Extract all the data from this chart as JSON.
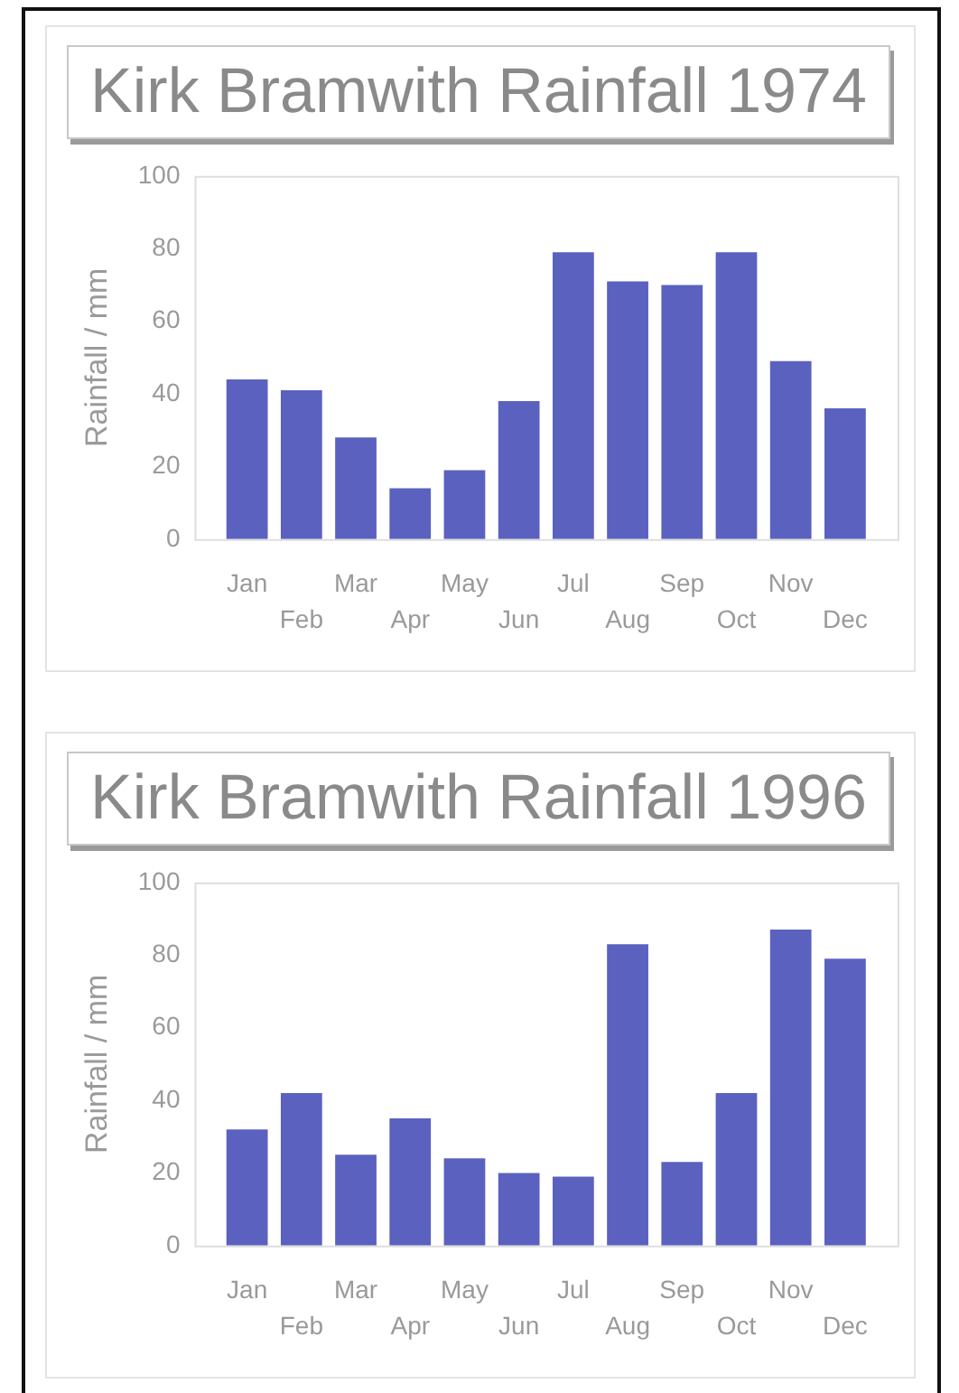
{
  "chart_data": [
    {
      "type": "bar",
      "title": "Kirk Bramwith Rainfall 1974",
      "ylabel": "Rainfall / mm",
      "categories": [
        "Jan",
        "Feb",
        "Mar",
        "Apr",
        "May",
        "Jun",
        "Jul",
        "Aug",
        "Sep",
        "Oct",
        "Nov",
        "Dec"
      ],
      "values": [
        44,
        41,
        28,
        14,
        19,
        38,
        79,
        71,
        70,
        79,
        49,
        36
      ],
      "color": "#5a61bf",
      "ylim": [
        0,
        100
      ],
      "yticks": [
        0,
        20,
        40,
        60,
        80,
        100
      ],
      "grid": false
    },
    {
      "type": "bar",
      "title": "Kirk Bramwith Rainfall 1996",
      "ylabel": "Rainfall / mm",
      "categories": [
        "Jan",
        "Feb",
        "Mar",
        "Apr",
        "May",
        "Jun",
        "Jul",
        "Aug",
        "Sep",
        "Oct",
        "Nov",
        "Dec"
      ],
      "values": [
        32,
        42,
        25,
        35,
        24,
        20,
        19,
        83,
        23,
        42,
        87,
        79
      ],
      "color": "#5a61bf",
      "ylim": [
        0,
        100
      ],
      "yticks": [
        0,
        20,
        40,
        60,
        80,
        100
      ],
      "grid": false
    }
  ]
}
